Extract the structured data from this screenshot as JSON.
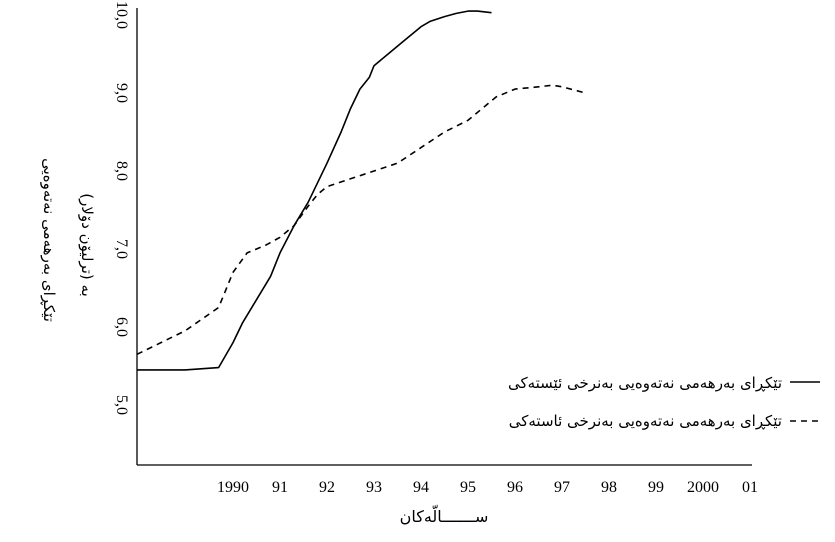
{
  "chart_data": {
    "type": "line",
    "x_tick_labels": [
      "1990",
      "91",
      "92",
      "93",
      "94",
      "95",
      "96",
      "97",
      "98",
      "99",
      "2000",
      "01"
    ],
    "y_tick_labels": [
      "5,0",
      "6,0",
      "7,0",
      "8,0",
      "9,0",
      "10,0"
    ],
    "ylim": [
      5.0,
      10.0
    ],
    "xlim": [
      1989,
      2001
    ],
    "xlabel": "ســـــــالّەکان",
    "ylabel_line1": "تێکڕای بەرهەمی نەتەوەیی",
    "ylabel_line2": "بە (ترلیۆن دۆلار)",
    "legend_position": "right",
    "series": [
      {
        "name": "تێکڕای بەرهەمی نەتەوەیی بەنرخی ئێستەکی",
        "style": "solid",
        "x": [
          1989.0,
          1989.5,
          1989.85,
          1990.0,
          1990.2,
          1990.5,
          1990.8,
          1991.0,
          1991.3,
          1991.6,
          1991.8,
          1992.0,
          1992.3,
          1992.5,
          1992.7,
          1992.9,
          1993.0,
          1993.3,
          1993.6,
          1993.8,
          1994.0,
          1994.2,
          1994.5,
          1994.75,
          1995.0,
          1995.2,
          1995.5
        ],
        "y": [
          5.45,
          5.45,
          5.48,
          5.8,
          6.05,
          6.35,
          6.65,
          6.95,
          7.3,
          7.6,
          7.85,
          8.1,
          8.5,
          8.8,
          9.05,
          9.2,
          9.35,
          9.5,
          9.65,
          9.75,
          9.85,
          9.92,
          9.98,
          10.02,
          10.05,
          10.05,
          10.03
        ]
      },
      {
        "name": "تێکڕای بەرهەمی نەتەوەیی بەنرخی ئاستەکی",
        "style": "dashed",
        "x": [
          1989.0,
          1989.5,
          1989.85,
          1990.0,
          1990.3,
          1990.7,
          1991.0,
          1991.3,
          1991.6,
          1991.8,
          1992.0,
          1992.5,
          1993.0,
          1993.5,
          1994.0,
          1994.5,
          1995.0,
          1995.3,
          1995.6,
          1996.0,
          1996.5,
          1996.8,
          1997.0,
          1997.5
        ],
        "y": [
          5.65,
          5.95,
          6.25,
          6.7,
          6.95,
          7.05,
          7.15,
          7.3,
          7.55,
          7.7,
          7.8,
          7.9,
          8.0,
          8.1,
          8.3,
          8.5,
          8.65,
          8.8,
          8.95,
          9.05,
          9.08,
          9.1,
          9.08,
          9.0
        ]
      }
    ]
  }
}
